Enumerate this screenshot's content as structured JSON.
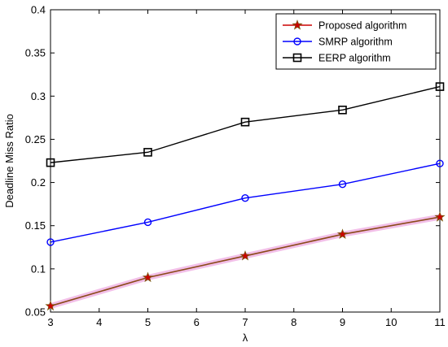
{
  "chart_data": {
    "type": "line",
    "title": "",
    "xlabel": "λ",
    "ylabel": "Deadline Miss Ratio",
    "xlim": [
      3,
      11
    ],
    "ylim": [
      0.05,
      0.4
    ],
    "xticks": [
      3,
      4,
      5,
      6,
      7,
      8,
      9,
      10,
      11
    ],
    "yticks": [
      0.05,
      0.1,
      0.15,
      0.2,
      0.25,
      0.3,
      0.35,
      0.4
    ],
    "ytick_labels": [
      "0.05",
      "0.1",
      "0.15",
      "0.2",
      "0.25",
      "0.3",
      "0.35",
      "0.4"
    ],
    "grid": false,
    "legend": "top-right",
    "x": [
      3,
      5,
      7,
      9,
      11
    ],
    "series": [
      {
        "name": "Proposed algorithm",
        "marker": "star",
        "color": "#cc0000",
        "values": [
          0.057,
          0.09,
          0.115,
          0.14,
          0.16
        ]
      },
      {
        "name": "SMRP algorithm",
        "marker": "circle",
        "color": "#0000ff",
        "values": [
          0.131,
          0.154,
          0.182,
          0.198,
          0.222
        ]
      },
      {
        "name": "EERP algorithm",
        "marker": "square",
        "color": "#000000",
        "values": [
          0.223,
          0.235,
          0.27,
          0.284,
          0.311
        ]
      }
    ]
  }
}
